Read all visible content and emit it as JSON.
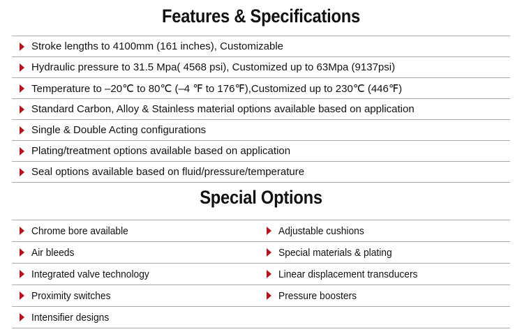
{
  "features": {
    "title": "Features & Specifications",
    "items": [
      "Stroke lengths to 4100mm (161 inches), Customizable",
      "Hydraulic pressure to 31.5 Mpa( 4568 psi), Customized up to 63Mpa (9137psi)",
      "Temperature to –20℃ to 80℃  (–4 ℉ to 176℉),Customized up to 230℃ (446℉)",
      "Standard Carbon, Alloy & Stainless material options available based on application",
      "Single & Double Acting configurations",
      "Plating/treatment options available based on application",
      "Seal options available based on fluid/pressure/temperature"
    ]
  },
  "special": {
    "title": "Special Options",
    "rows": [
      [
        "Chrome bore available",
        "Adjustable cushions"
      ],
      [
        "Air bleeds",
        "Special materials & plating"
      ],
      [
        "Integrated valve technology",
        "Linear displacement transducers"
      ],
      [
        "Proximity switches",
        "Pressure boosters"
      ],
      [
        "Intensifier designs",
        null
      ]
    ]
  },
  "colors": {
    "bullet": "#b5121b",
    "divider": "#aaaaaa"
  },
  "icons": {
    "bullet": "triangle-right-icon"
  }
}
